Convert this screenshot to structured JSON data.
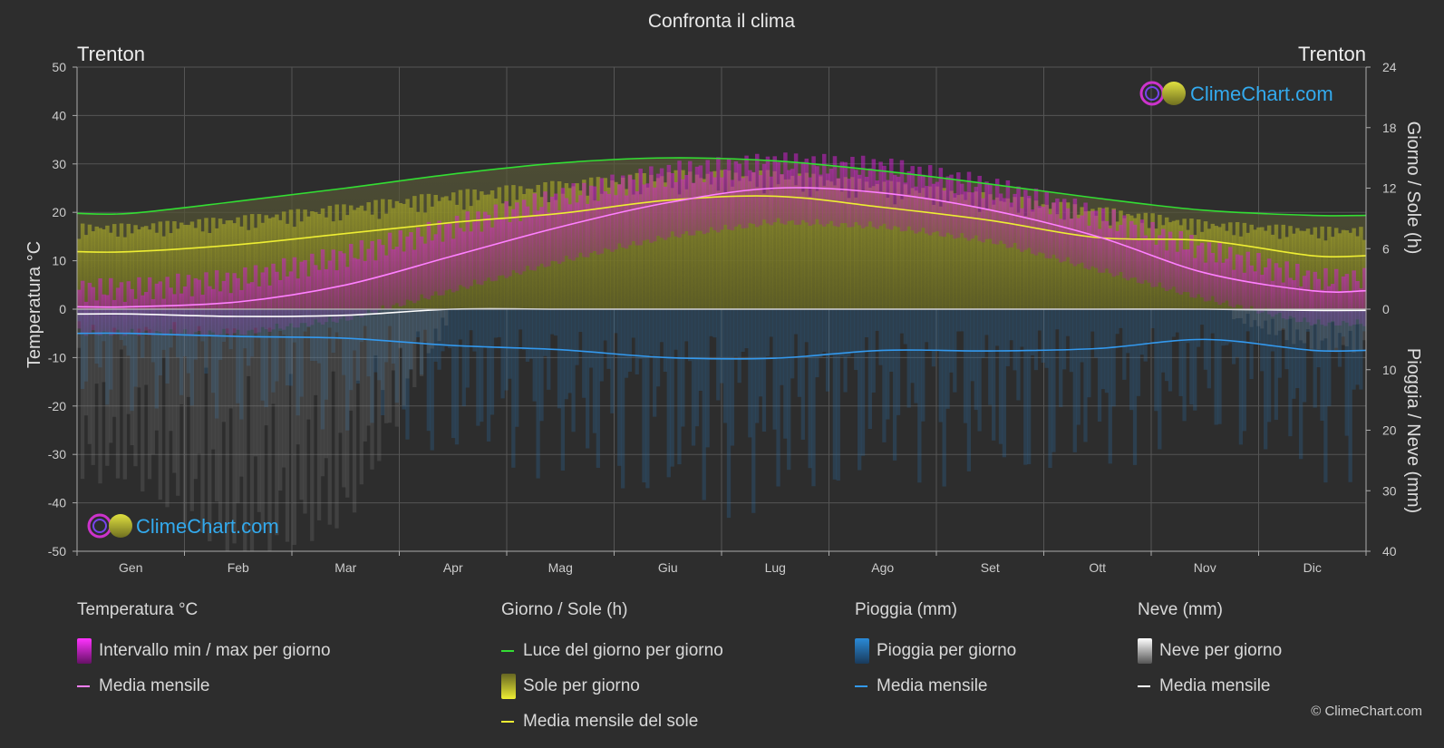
{
  "title": "Confronta il clima",
  "location_left": "Trenton",
  "location_right": "Trenton",
  "watermark": "ClimeChart.com",
  "copyright": "© ClimeChart.com",
  "colors": {
    "background": "#2d2d2d",
    "temp_range": "#e020e0",
    "temp_mean": "#ff80ff",
    "daylight": "#33dd33",
    "sun": "#dddd33",
    "sun_mean": "#eeee33",
    "rain": "#2a8ad8",
    "rain_mean": "#3399ee",
    "snow": "#cccccc",
    "snow_mean": "#ffffff"
  },
  "axes": {
    "left_label": "Temperatura °C",
    "right_top_label": "Giorno / Sole (h)",
    "right_bottom_label": "Pioggia / Neve (mm)",
    "left_ticks": [
      "50",
      "40",
      "30",
      "20",
      "10",
      "0",
      "-10",
      "-20",
      "-30",
      "-40",
      "-50"
    ],
    "right_top_ticks": [
      "24",
      "18",
      "12",
      "6",
      "0"
    ],
    "right_bottom_ticks": [
      "10",
      "20",
      "30",
      "40"
    ]
  },
  "legend": {
    "temperature": {
      "heading": "Temperatura °C",
      "range": "Intervallo min / max per giorno",
      "mean": "Media mensile"
    },
    "sun": {
      "heading": "Giorno / Sole (h)",
      "daylight": "Luce del giorno per giorno",
      "sun": "Sole per giorno",
      "sun_mean": "Media mensile del sole"
    },
    "rain": {
      "heading": "Pioggia (mm)",
      "rain": "Pioggia per giorno",
      "mean": "Media mensile"
    },
    "snow": {
      "heading": "Neve (mm)",
      "snow": "Neve per giorno",
      "mean": "Media mensile"
    }
  },
  "chart_data": {
    "type": "area",
    "title": "Confronta il clima",
    "categories": [
      "Gen",
      "Feb",
      "Mar",
      "Apr",
      "Mag",
      "Giu",
      "Lug",
      "Ago",
      "Set",
      "Ott",
      "Nov",
      "Dic"
    ],
    "ylim_temp": [
      -50,
      50
    ],
    "ylim_hours": [
      0,
      24
    ],
    "ylim_precip_mm": [
      0,
      40
    ],
    "grid": true,
    "series": [
      {
        "name": "Media mensile",
        "axis": "temp",
        "values": [
          0.5,
          1.5,
          5,
          11,
          17,
          22,
          25,
          24,
          20.5,
          15,
          7.5,
          3.8
        ]
      },
      {
        "name": "Intervallo min / max per giorno (max)",
        "axis": "temp",
        "values": [
          4,
          6,
          11,
          17,
          23,
          28,
          30,
          29,
          25,
          19,
          12,
          6
        ]
      },
      {
        "name": "Intervallo min / max per giorno (min)",
        "axis": "temp",
        "values": [
          -4,
          -4,
          -1,
          5,
          11,
          16,
          19,
          18,
          15,
          9,
          3,
          -2
        ]
      },
      {
        "name": "Luce del giorno per giorno",
        "axis": "hours",
        "values": [
          9.5,
          10.7,
          12.0,
          13.4,
          14.5,
          15.0,
          14.7,
          13.7,
          12.4,
          11.0,
          9.8,
          9.3
        ]
      },
      {
        "name": "Media mensile del sole",
        "axis": "hours",
        "values": [
          5.7,
          6.4,
          7.5,
          8.6,
          9.5,
          10.8,
          11.2,
          10.1,
          8.8,
          7.1,
          6.8,
          5.3
        ]
      },
      {
        "name": "Sole per giorno",
        "axis": "hours",
        "values": [
          8.5,
          9.3,
          10.5,
          11.8,
          12.8,
          13.8,
          13.8,
          12.8,
          11.5,
          10.2,
          8.8,
          8.2
        ]
      },
      {
        "name": "Pioggia media mensile",
        "axis": "precip",
        "values": [
          4.0,
          4.5,
          4.8,
          6.0,
          6.7,
          8.0,
          8.1,
          6.8,
          6.9,
          6.5,
          5.0,
          6.8
        ]
      },
      {
        "name": "Neve media mensile",
        "axis": "precip",
        "values": [
          0.8,
          1.2,
          1.0,
          0.0,
          0.0,
          0.0,
          0.0,
          0.0,
          0.0,
          0.0,
          0.0,
          0.2
        ]
      }
    ]
  }
}
